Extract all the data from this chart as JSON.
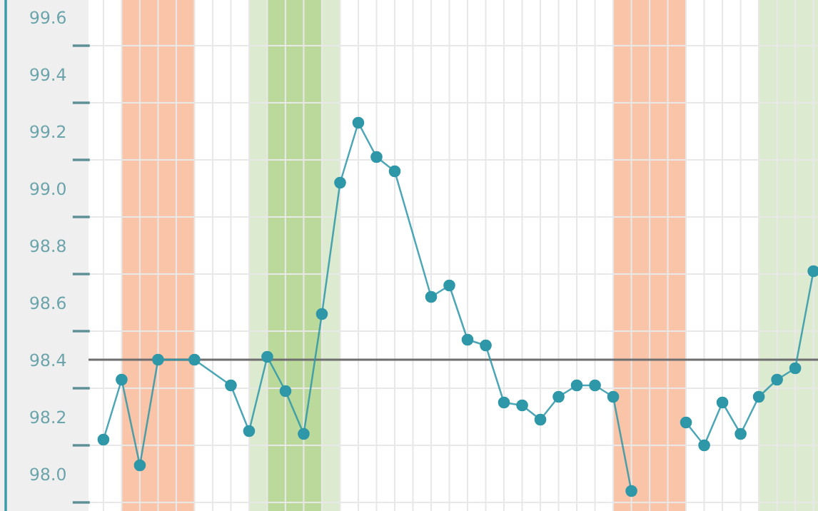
{
  "chart_data": {
    "type": "line",
    "categories": [
      null,
      null,
      null,
      null,
      null,
      null,
      null,
      null,
      null,
      null,
      null,
      null,
      null,
      null,
      null,
      null,
      null,
      null,
      null,
      null,
      null,
      null,
      null,
      null,
      null,
      null,
      null,
      null,
      null,
      null,
      null,
      null,
      null,
      null,
      null,
      null,
      null,
      null,
      null,
      null
    ],
    "series": [
      {
        "color": "#2e97a8",
        "values": [
          98.12,
          98.33,
          98.03,
          98.4,
          null,
          98.4,
          null,
          98.31,
          98.15,
          98.41,
          98.29,
          98.14,
          98.56,
          99.02,
          99.23,
          99.11,
          99.06,
          null,
          98.62,
          98.66,
          98.47,
          98.45,
          98.25,
          98.24,
          98.19,
          98.27,
          98.31,
          98.31,
          98.27,
          97.94,
          null,
          null,
          null,
          null,
          null,
          null,
          null,
          null,
          null,
          null
        ]
      },
      {
        "color": "#2e97a8",
        "values": [
          null,
          null,
          null,
          null,
          null,
          null,
          null,
          null,
          null,
          null,
          null,
          null,
          null,
          null,
          null,
          null,
          null,
          null,
          null,
          null,
          null,
          null,
          null,
          null,
          null,
          null,
          null,
          null,
          null,
          null,
          null,
          null,
          98.18,
          98.1,
          98.25,
          98.14,
          98.27,
          98.33,
          98.37,
          98.71
        ]
      }
    ],
    "ylim": [
      97.87,
      99.66
    ],
    "yticks": [
      {
        "value": 97.9,
        "label": null
      },
      {
        "value": 98.0,
        "label": "98.0"
      },
      {
        "value": 98.1,
        "label": null
      },
      98.2,
      {
        "value": 98.3,
        "label": null
      },
      98.4,
      {
        "value": 98.5,
        "label": null
      },
      98.6,
      {
        "value": 98.7,
        "label": null
      },
      98.8,
      {
        "value": 98.9,
        "label": null
      },
      {
        "value": 99.0,
        "label": "99.0"
      },
      {
        "value": 99.1,
        "label": null
      },
      99.2,
      {
        "value": 99.3,
        "label": null
      },
      99.4,
      {
        "value": 99.5,
        "label": null
      },
      99.6
    ],
    "ref_lines": [
      {
        "axis": "y",
        "value": 98.4,
        "label": null,
        "color": "#6e6e6e"
      }
    ],
    "grid": true,
    "marker": "circle",
    "line_style": "solid",
    "tick_labels": "y"
  }
}
